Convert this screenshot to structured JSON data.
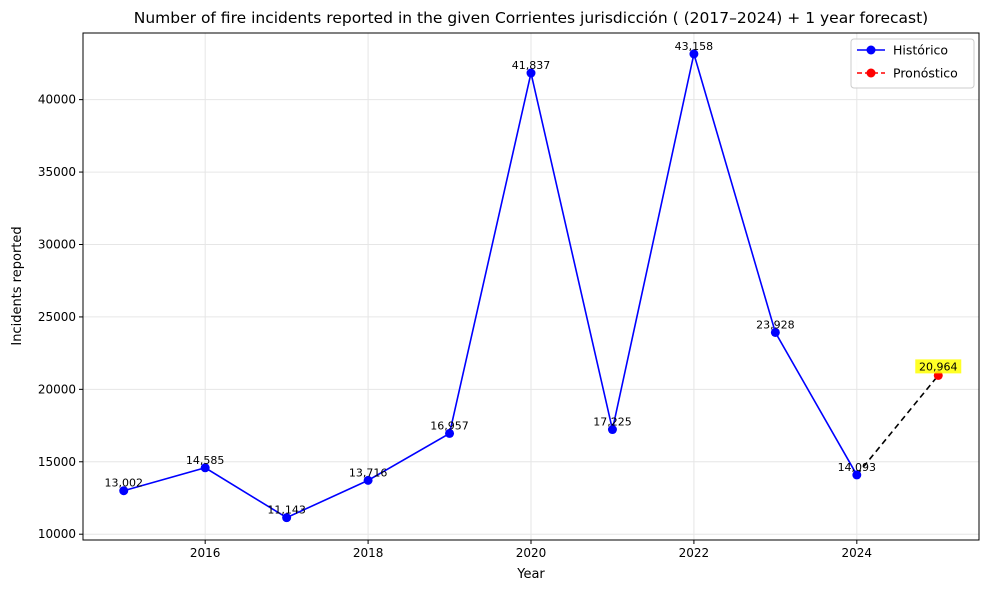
{
  "chart_data": {
    "type": "line",
    "title": "Number of fire incidents reported in the given Corrientes jurisdicción  ( (2017–2024)  + 1 year forecast)",
    "xlabel": "Year",
    "ylabel": "Incidents reported",
    "xlim": [
      2014.5,
      2025.5
    ],
    "ylim": [
      9600,
      44600
    ],
    "xticks": [
      2016,
      2018,
      2020,
      2022,
      2024
    ],
    "yticks": [
      10000,
      15000,
      20000,
      25000,
      30000,
      35000,
      40000
    ],
    "grid": true,
    "legend_position": "top-right",
    "series": [
      {
        "name": "Histórico",
        "color": "#0000ff",
        "style": "solid",
        "x": [
          2015,
          2016,
          2017,
          2018,
          2019,
          2020,
          2021,
          2022,
          2023,
          2024
        ],
        "y": [
          13002,
          14585,
          11143,
          13716,
          16957,
          41837,
          17225,
          43158,
          23928,
          14093
        ],
        "labels": [
          "13,002",
          "14,585",
          "11,143",
          "13,716",
          "16,957",
          "41,837",
          "17,225",
          "43,158",
          "23,928",
          "14,093"
        ]
      },
      {
        "name": "Pronóstico",
        "color": "#ff0000",
        "style": "dashed",
        "x": [
          2025
        ],
        "y": [
          20964
        ],
        "labels": [
          "20,964"
        ]
      }
    ],
    "connector": {
      "color": "#000000",
      "style": "dashed"
    },
    "forecast_label_highlight": "#ffff00"
  }
}
